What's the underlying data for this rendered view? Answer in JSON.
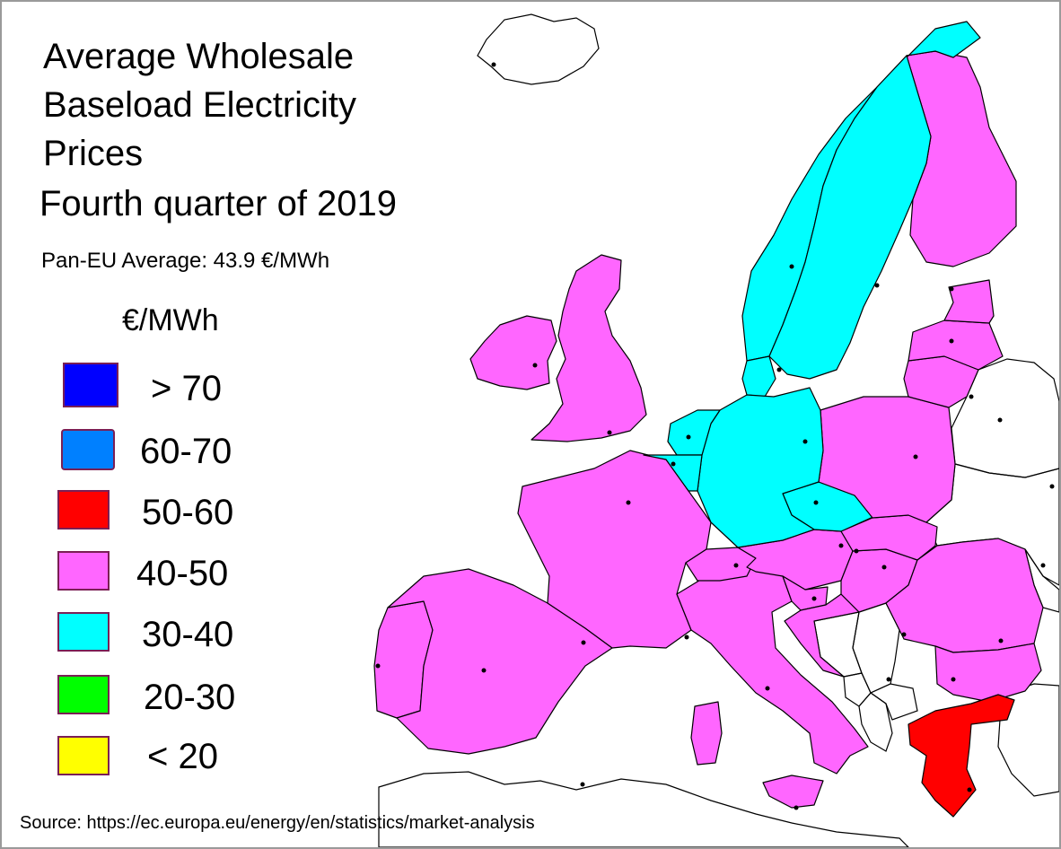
{
  "title": "Average Wholesale Baseload Electricity Prices",
  "subtitle": "Fourth quarter of 2019",
  "average_label": "Pan-EU Average:  43.9 €/MWh",
  "unit": "€/MWh",
  "legend": [
    {
      "label": "> 70",
      "color": "#0000ff"
    },
    {
      "label": "60-70",
      "color": "#0080ff"
    },
    {
      "label": "50-60",
      "color": "#ff0000"
    },
    {
      "label": "40-50",
      "color": "#ff66ff"
    },
    {
      "label": "30-40",
      "color": "#00ffff"
    },
    {
      "label": "20-30",
      "color": "#00ff00"
    },
    {
      "label": "< 20",
      "color": "#ffff00"
    }
  ],
  "source": "Source: https://ec.europa.eu/energy/en/statistics/market-analysis",
  "colors": {
    "border": "#000000",
    "background": "#ffffff",
    "no_data": "#ffffff"
  },
  "regions": [
    {
      "name": "Ireland",
      "category": "40-50"
    },
    {
      "name": "United Kingdom",
      "category": "40-50"
    },
    {
      "name": "Portugal",
      "category": "40-50"
    },
    {
      "name": "Spain",
      "category": "40-50"
    },
    {
      "name": "France",
      "category": "40-50"
    },
    {
      "name": "Italy",
      "category": "40-50"
    },
    {
      "name": "Sicily",
      "category": "40-50"
    },
    {
      "name": "Sardinia",
      "category": "40-50"
    },
    {
      "name": "Switzerland",
      "category": "40-50"
    },
    {
      "name": "Austria",
      "category": "40-50"
    },
    {
      "name": "Slovenia",
      "category": "40-50"
    },
    {
      "name": "Croatia",
      "category": "40-50"
    },
    {
      "name": "Hungary",
      "category": "40-50"
    },
    {
      "name": "Slovakia",
      "category": "40-50"
    },
    {
      "name": "Romania",
      "category": "40-50"
    },
    {
      "name": "Bulgaria",
      "category": "40-50"
    },
    {
      "name": "Poland",
      "category": "40-50"
    },
    {
      "name": "Lithuania",
      "category": "40-50"
    },
    {
      "name": "Latvia",
      "category": "40-50"
    },
    {
      "name": "Estonia",
      "category": "40-50"
    },
    {
      "name": "Finland",
      "category": "40-50"
    },
    {
      "name": "Greece",
      "category": "50-60"
    },
    {
      "name": "Norway",
      "category": "30-40"
    },
    {
      "name": "Sweden",
      "category": "30-40"
    },
    {
      "name": "Denmark",
      "category": "30-40"
    },
    {
      "name": "Germany",
      "category": "30-40"
    },
    {
      "name": "Netherlands",
      "category": "30-40"
    },
    {
      "name": "Belgium",
      "category": "30-40"
    },
    {
      "name": "Czech Republic",
      "category": "30-40"
    },
    {
      "name": "Iceland",
      "category": "no data"
    },
    {
      "name": "Belarus",
      "category": "no data"
    },
    {
      "name": "Ukraine",
      "category": "no data"
    },
    {
      "name": "Serbia",
      "category": "no data"
    },
    {
      "name": "Bosnia and Herzegovina",
      "category": "no data"
    },
    {
      "name": "Montenegro",
      "category": "no data"
    },
    {
      "name": "Albania",
      "category": "no data"
    },
    {
      "name": "North Macedonia",
      "category": "no data"
    },
    {
      "name": "Moldova",
      "category": "no data"
    },
    {
      "name": "Turkey",
      "category": "no data"
    },
    {
      "name": "North Africa",
      "category": "no data"
    }
  ]
}
